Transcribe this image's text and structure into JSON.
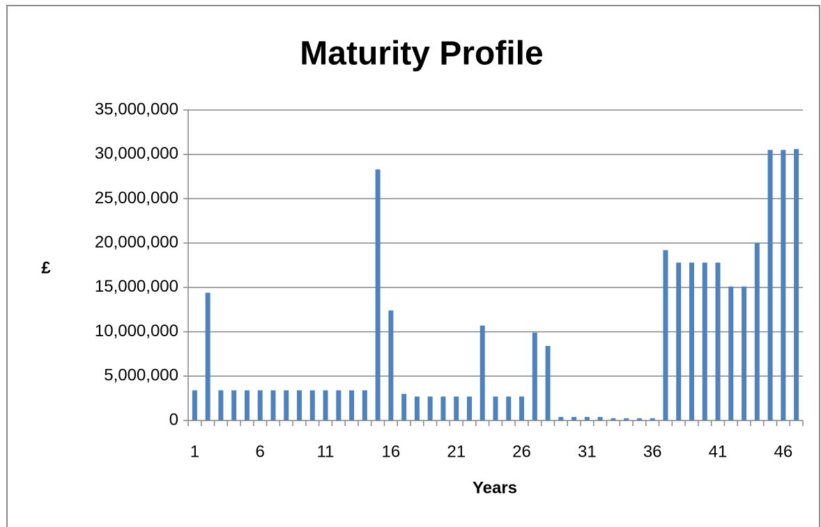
{
  "chart_data": {
    "type": "bar",
    "title": "Maturity Profile",
    "x_label": "Years",
    "y_label": "£",
    "categories": [
      "1",
      null,
      null,
      null,
      null,
      "6",
      null,
      null,
      null,
      null,
      "11",
      null,
      null,
      null,
      null,
      "16",
      null,
      null,
      null,
      null,
      "21",
      null,
      null,
      null,
      null,
      "26",
      null,
      null,
      null,
      null,
      "31",
      null,
      null,
      null,
      null,
      "36",
      null,
      null,
      null,
      null,
      "41",
      null,
      null,
      null,
      null,
      "46",
      null
    ],
    "values": [
      3400000,
      14400000,
      3400000,
      3400000,
      3400000,
      3400000,
      3400000,
      3400000,
      3400000,
      3400000,
      3400000,
      3400000,
      3400000,
      3400000,
      28300000,
      12400000,
      3000000,
      2700000,
      2700000,
      2700000,
      2700000,
      2700000,
      10700000,
      2700000,
      2700000,
      2700000,
      9900000,
      8400000,
      400000,
      400000,
      400000,
      400000,
      250000,
      250000,
      250000,
      250000,
      19200000,
      17800000,
      17800000,
      17800000,
      17800000,
      15100000,
      15100000,
      20000000,
      30500000,
      30500000,
      30600000
    ],
    "color": "#4f81bd",
    "ylim": [
      0,
      35000000
    ],
    "yticks": [
      0,
      {
        "value": 5000000,
        "label": "5,000,000"
      },
      {
        "value": 10000000,
        "label": "10,000,000"
      },
      {
        "value": 15000000,
        "label": "15,000,000"
      },
      {
        "value": 20000000,
        "label": "20,000,000"
      },
      {
        "value": 25000000,
        "label": "25,000,000"
      },
      {
        "value": 30000000,
        "label": "30,000,000"
      },
      {
        "value": 35000000,
        "label": "35,000,000"
      }
    ],
    "grid": true
  }
}
